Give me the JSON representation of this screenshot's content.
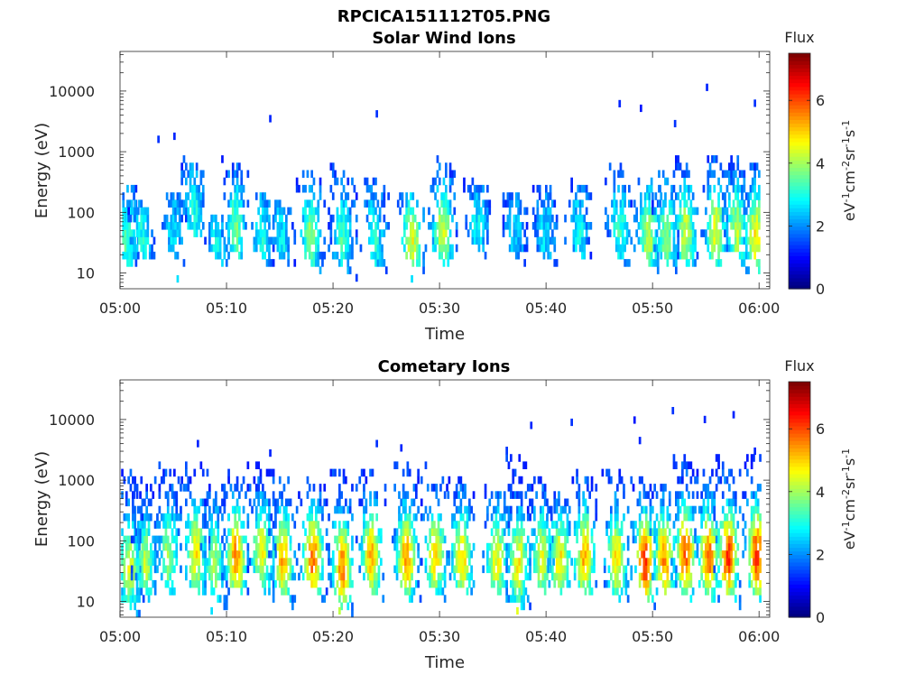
{
  "figure": {
    "title": "RPCICA151112T05.PNG"
  },
  "chart_data": [
    {
      "type": "heatmap",
      "title": "Solar Wind Ions",
      "xlabel": "Time",
      "ylabel": "Energy (eV)",
      "x_tick_labels": [
        "05:00",
        "05:10",
        "05:20",
        "05:30",
        "05:40",
        "05:50",
        "06:00"
      ],
      "x_range_minutes": [
        0,
        61
      ],
      "y_scale": "log",
      "y_tick_labels": [
        "10",
        "100",
        "1000",
        "10000"
      ],
      "y_range": [
        5.5,
        45000
      ],
      "colorbar": {
        "title": "Flux",
        "label": "eV-1cm-2sr-1s-1",
        "ticks": [
          "0",
          "2",
          "4",
          "6"
        ],
        "range": [
          0,
          7.5
        ],
        "colormap": "jet"
      },
      "flux_level": "sparse, mostly 2-4 with occasional 5",
      "bursts": [
        {
          "t": 0.5,
          "emin": 15,
          "emax": 300,
          "peak": 3.3
        },
        {
          "t": 2.0,
          "emin": 20,
          "emax": 140,
          "peak": 3.0
        },
        {
          "t": 5.0,
          "emin": 20,
          "emax": 200,
          "peak": 2.6
        },
        {
          "t": 6.8,
          "emin": 45,
          "emax": 650,
          "peak": 3.0
        },
        {
          "t": 9.0,
          "emin": 18,
          "emax": 80,
          "peak": 2.8
        },
        {
          "t": 10.8,
          "emin": 20,
          "emax": 650,
          "peak": 3.6
        },
        {
          "t": 13.2,
          "emin": 18,
          "emax": 200,
          "peak": 3.0
        },
        {
          "t": 15.0,
          "emin": 18,
          "emax": 160,
          "peak": 2.8
        },
        {
          "t": 17.8,
          "emin": 15,
          "emax": 500,
          "peak": 3.8
        },
        {
          "t": 20.8,
          "emin": 12,
          "emax": 600,
          "peak": 3.3
        },
        {
          "t": 23.8,
          "emin": 15,
          "emax": 350,
          "peak": 3.0
        },
        {
          "t": 27.3,
          "emin": 15,
          "emax": 200,
          "peak": 4.5
        },
        {
          "t": 30.2,
          "emin": 15,
          "emax": 700,
          "peak": 4.4
        },
        {
          "t": 33.5,
          "emin": 25,
          "emax": 300,
          "peak": 2.8
        },
        {
          "t": 37.0,
          "emin": 20,
          "emax": 200,
          "peak": 2.5
        },
        {
          "t": 39.8,
          "emin": 18,
          "emax": 300,
          "peak": 2.6
        },
        {
          "t": 43.0,
          "emin": 20,
          "emax": 300,
          "peak": 2.8
        },
        {
          "t": 46.8,
          "emin": 18,
          "emax": 600,
          "peak": 3.2
        },
        {
          "t": 49.5,
          "emin": 15,
          "emax": 350,
          "peak": 4.2
        },
        {
          "t": 51.2,
          "emin": 15,
          "emax": 450,
          "peak": 3.8
        },
        {
          "t": 53.0,
          "emin": 15,
          "emax": 700,
          "peak": 4.3
        },
        {
          "t": 55.8,
          "emin": 15,
          "emax": 900,
          "peak": 4.5
        },
        {
          "t": 57.8,
          "emin": 15,
          "emax": 900,
          "peak": 4.2
        },
        {
          "t": 59.6,
          "emin": 12,
          "emax": 600,
          "peak": 4.8
        }
      ],
      "isolated_points": [
        {
          "t": 3.5,
          "e": 1600,
          "v": 1.3
        },
        {
          "t": 5.0,
          "e": 1800,
          "v": 1.2
        },
        {
          "t": 14.0,
          "e": 3500,
          "v": 1.2
        },
        {
          "t": 24.0,
          "e": 4200,
          "v": 1.3
        },
        {
          "t": 46.8,
          "e": 6200,
          "v": 1.2
        },
        {
          "t": 48.8,
          "e": 5200,
          "v": 1.1
        },
        {
          "t": 52.0,
          "e": 2900,
          "v": 1.3
        },
        {
          "t": 55.0,
          "e": 11500,
          "v": 1.2
        },
        {
          "t": 59.5,
          "e": 6300,
          "v": 1.3
        },
        {
          "t": 5.3,
          "e": 8,
          "v": 2.6
        },
        {
          "t": 27.3,
          "e": 8,
          "v": 2.6
        }
      ]
    },
    {
      "type": "heatmap",
      "title": "Cometary Ions",
      "xlabel": "Time",
      "ylabel": "Energy (eV)",
      "x_tick_labels": [
        "05:00",
        "05:10",
        "05:20",
        "05:30",
        "05:40",
        "05:50",
        "06:00"
      ],
      "x_range_minutes": [
        0,
        61
      ],
      "y_scale": "log",
      "y_tick_labels": [
        "10",
        "100",
        "1000",
        "10000"
      ],
      "y_range": [
        5.5,
        45000
      ],
      "colorbar": {
        "title": "Flux",
        "label": "eV-1cm-2sr-1s-1",
        "ticks": [
          "0",
          "2",
          "4",
          "6"
        ],
        "range": [
          0,
          7.5
        ],
        "colormap": "jet"
      },
      "flux_level": "dense, peaks 5-6.5 at 20-100 eV",
      "bursts": [
        {
          "t": 0.8,
          "emin": 8,
          "emax": 1400,
          "peak": 4.5
        },
        {
          "t": 2.3,
          "emin": 12,
          "emax": 900,
          "peak": 4.2
        },
        {
          "t": 4.5,
          "emin": 15,
          "emax": 1500,
          "peak": 4.0
        },
        {
          "t": 7.0,
          "emin": 15,
          "emax": 2000,
          "peak": 4.8
        },
        {
          "t": 8.8,
          "emin": 12,
          "emax": 700,
          "peak": 4.0
        },
        {
          "t": 10.8,
          "emin": 15,
          "emax": 1200,
          "peak": 5.5
        },
        {
          "t": 13.2,
          "emin": 15,
          "emax": 2000,
          "peak": 4.6
        },
        {
          "t": 15.2,
          "emin": 12,
          "emax": 1200,
          "peak": 5.3
        },
        {
          "t": 18.0,
          "emin": 15,
          "emax": 1000,
          "peak": 5.8
        },
        {
          "t": 20.8,
          "emin": 8,
          "emax": 1500,
          "peak": 5.6
        },
        {
          "t": 23.5,
          "emin": 15,
          "emax": 1500,
          "peak": 5.2
        },
        {
          "t": 26.8,
          "emin": 12,
          "emax": 2000,
          "peak": 5.5
        },
        {
          "t": 29.5,
          "emin": 15,
          "emax": 1500,
          "peak": 5.0
        },
        {
          "t": 32.0,
          "emin": 15,
          "emax": 1000,
          "peak": 5.0
        },
        {
          "t": 35.3,
          "emin": 15,
          "emax": 700,
          "peak": 4.6
        },
        {
          "t": 37.3,
          "emin": 8,
          "emax": 2500,
          "peak": 4.8
        },
        {
          "t": 39.5,
          "emin": 15,
          "emax": 1000,
          "peak": 4.5
        },
        {
          "t": 41.2,
          "emin": 15,
          "emax": 600,
          "peak": 4.8
        },
        {
          "t": 43.5,
          "emin": 15,
          "emax": 1200,
          "peak": 5.3
        },
        {
          "t": 46.5,
          "emin": 12,
          "emax": 1500,
          "peak": 4.8
        },
        {
          "t": 49.2,
          "emin": 12,
          "emax": 1000,
          "peak": 6.3
        },
        {
          "t": 51.0,
          "emin": 15,
          "emax": 800,
          "peak": 5.5
        },
        {
          "t": 53.0,
          "emin": 12,
          "emax": 2500,
          "peak": 6.0
        },
        {
          "t": 55.2,
          "emin": 12,
          "emax": 1800,
          "peak": 5.8
        },
        {
          "t": 57.0,
          "emin": 12,
          "emax": 2000,
          "peak": 6.2
        },
        {
          "t": 59.7,
          "emin": 12,
          "emax": 2500,
          "peak": 6.2
        }
      ],
      "isolated_points": [
        {
          "t": 7.2,
          "e": 4000,
          "v": 1.2
        },
        {
          "t": 14.0,
          "e": 2800,
          "v": 1.2
        },
        {
          "t": 24.0,
          "e": 4000,
          "v": 1.3
        },
        {
          "t": 26.3,
          "e": 3400,
          "v": 1.2
        },
        {
          "t": 38.5,
          "e": 8000,
          "v": 1.2
        },
        {
          "t": 42.3,
          "e": 9000,
          "v": 1.3
        },
        {
          "t": 48.2,
          "e": 9800,
          "v": 1.1
        },
        {
          "t": 48.7,
          "e": 4500,
          "v": 1.2
        },
        {
          "t": 51.8,
          "e": 14000,
          "v": 1.3
        },
        {
          "t": 54.8,
          "e": 10000,
          "v": 1.2
        },
        {
          "t": 57.5,
          "e": 12000,
          "v": 1.2
        },
        {
          "t": 59.5,
          "e": 3000,
          "v": 1.2
        },
        {
          "t": 8.5,
          "e": 7,
          "v": 2.6
        },
        {
          "t": 20.5,
          "e": 7,
          "v": 4.2
        },
        {
          "t": 37.2,
          "e": 7,
          "v": 4.5
        }
      ]
    }
  ]
}
